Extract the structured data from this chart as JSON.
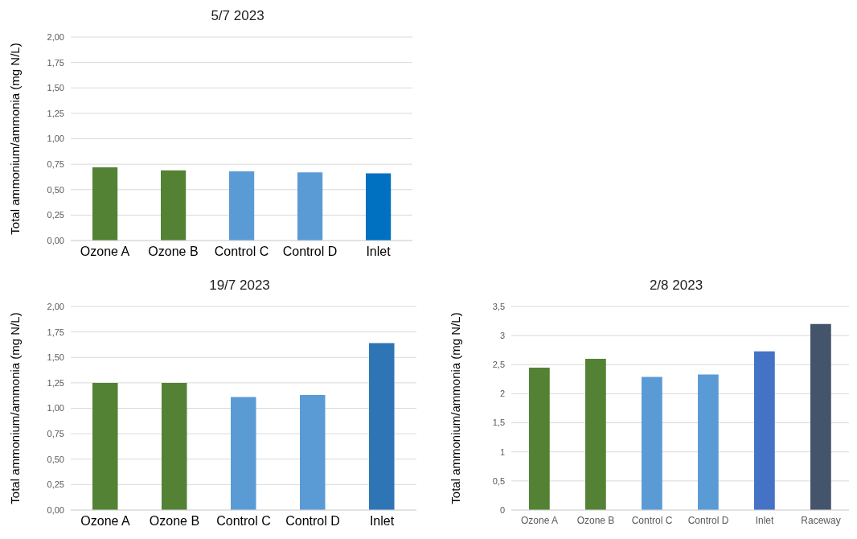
{
  "chart_data": [
    {
      "type": "bar",
      "title": "5/7 2023",
      "ylabel": "Total ammonium/ammonia (mg N/L)",
      "categories": [
        "Ozone A",
        "Ozone B",
        "Control C",
        "Control D",
        "Inlet"
      ],
      "values": [
        0.72,
        0.69,
        0.68,
        0.67,
        0.66
      ],
      "colors": [
        "#548235",
        "#548235",
        "#5b9bd5",
        "#5b9bd5",
        "#0070c0"
      ],
      "ylim": [
        0,
        2
      ],
      "yticks": [
        {
          "value": 0,
          "label": "0,00"
        },
        {
          "value": 0.25,
          "label": "0,25"
        },
        {
          "value": 0.5,
          "label": "0,50"
        },
        {
          "value": 0.75,
          "label": "0,75"
        },
        {
          "value": 1,
          "label": "1,00"
        },
        {
          "value": 1.25,
          "label": "1,25"
        },
        {
          "value": 1.5,
          "label": "1,50"
        },
        {
          "value": 1.75,
          "label": "1,75"
        },
        {
          "value": 2,
          "label": "2,00"
        }
      ],
      "grid": "y",
      "legend": false
    },
    {
      "type": "bar",
      "title": "19/7 2023",
      "ylabel": "Total ammonium/ammonia (mg N/L)",
      "categories": [
        "Ozone A",
        "Ozone B",
        "Control C",
        "Control D",
        "Inlet"
      ],
      "values": [
        1.25,
        1.25,
        1.11,
        1.13,
        1.64
      ],
      "colors": [
        "#548235",
        "#548235",
        "#5b9bd5",
        "#5b9bd5",
        "#2e75b6"
      ],
      "ylim": [
        0,
        2
      ],
      "yticks": [
        {
          "value": 0,
          "label": "0,00"
        },
        {
          "value": 0.25,
          "label": "0,25"
        },
        {
          "value": 0.5,
          "label": "0,50"
        },
        {
          "value": 0.75,
          "label": "0,75"
        },
        {
          "value": 1,
          "label": "1,00"
        },
        {
          "value": 1.25,
          "label": "1,25"
        },
        {
          "value": 1.5,
          "label": "1,50"
        },
        {
          "value": 1.75,
          "label": "1,75"
        },
        {
          "value": 2,
          "label": "2,00"
        }
      ],
      "grid": "y",
      "legend": false
    },
    {
      "type": "bar",
      "title": "2/8 2023",
      "ylabel": "Total ammonium/ammonia (mg N/L)",
      "categories": [
        "Ozone A",
        "Ozone B",
        "Control C",
        "Control D",
        "Inlet",
        "Raceway"
      ],
      "values": [
        2.45,
        2.6,
        2.29,
        2.33,
        2.73,
        3.2
      ],
      "colors": [
        "#548235",
        "#548235",
        "#5b9bd5",
        "#5b9bd5",
        "#4472c4",
        "#44546a"
      ],
      "ylim": [
        0,
        3.5
      ],
      "yticks": [
        0,
        {
          "value": 0.5,
          "label": "0,5"
        },
        1,
        {
          "value": 1.5,
          "label": "1,5"
        },
        2,
        {
          "value": 2.5,
          "label": "2,5"
        },
        3,
        {
          "value": 3.5,
          "label": "3,5"
        }
      ],
      "grid": "y",
      "legend": false
    }
  ]
}
